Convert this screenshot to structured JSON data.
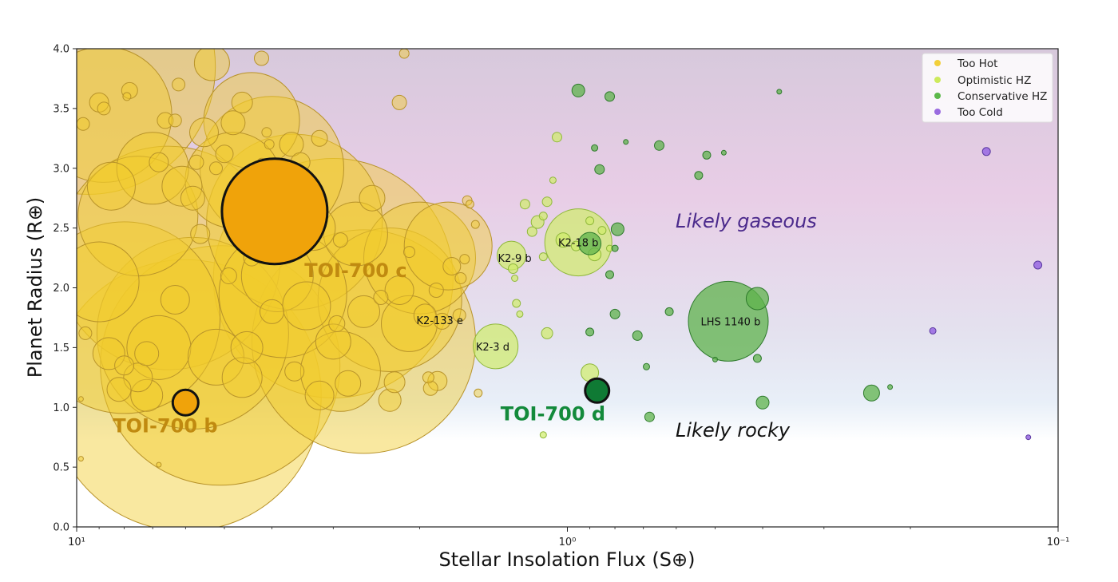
{
  "chart_data": {
    "type": "scatter",
    "xlabel": "Stellar Insolation Flux (S⊕)",
    "ylabel": "Planet Radius (R⊕)",
    "x_scale": "log",
    "x_reversed": true,
    "xlim": [
      10,
      0.1
    ],
    "ylim": [
      0,
      4
    ],
    "x_ticks": [
      {
        "value": 10,
        "label": "10¹"
      },
      {
        "value": 1,
        "label": "10⁰"
      },
      {
        "value": 0.1,
        "label": "10⁻¹"
      }
    ],
    "y_ticks": [
      0.0,
      0.5,
      1.0,
      1.5,
      2.0,
      2.5,
      3.0,
      3.5,
      4.0
    ],
    "grid": false,
    "legend": {
      "position": "top-right",
      "entries": [
        {
          "name": "Too Hot",
          "color": "#f2cf3a"
        },
        {
          "name": "Optimistic HZ",
          "color": "#cdea5c"
        },
        {
          "name": "Conservative HZ",
          "color": "#5cb84a"
        },
        {
          "name": "Too Cold",
          "color": "#9a6be0"
        }
      ]
    },
    "regions": [
      {
        "label": "Likely gaseous",
        "color": "#4b2a8c"
      },
      {
        "label": "Likely rocky",
        "color": "#111111"
      }
    ],
    "colors": {
      "too_hot_fill": "#f2cb2c",
      "too_hot_edge": "#b8932a",
      "optimistic_fill": "#d0ec6a",
      "optimistic_edge": "#8fb83a",
      "conservative_fill": "#5fb34c",
      "conservative_edge": "#2e7a2c",
      "too_cold_fill": "#9b6ee2",
      "too_cold_edge": "#5b3aa0",
      "toi_hot_fill": "#f0a30a",
      "toi_d_fill": "#0f7a34",
      "toi_c_text": "#c08a10",
      "toi_d_text": "#138a3b"
    },
    "series": [
      {
        "name": "Too Hot",
        "points": [
          [
            9.5,
            3.85,
            160
          ],
          [
            8.8,
            3.45,
            85
          ],
          [
            5.3,
            3.88,
            22
          ],
          [
            4.4,
            3.4,
            60
          ],
          [
            3.6,
            2.55,
            110
          ],
          [
            3.0,
            2.08,
            150
          ],
          [
            2.6,
            1.55,
            140
          ],
          [
            2.3,
            1.9,
            90
          ],
          [
            2.0,
            2.25,
            70
          ],
          [
            1.75,
            2.35,
            55
          ],
          [
            5.8,
            1.62,
            120
          ],
          [
            6.0,
            1.1,
            170
          ],
          [
            5.1,
            1.35,
            150
          ],
          [
            4.0,
            3.0,
            90
          ],
          [
            7.5,
            2.6,
            75
          ],
          [
            6.5,
            2.25,
            140
          ],
          [
            8.0,
            1.75,
            120
          ],
          [
            4.8,
            2.9,
            60
          ],
          [
            3.8,
            1.95,
            80
          ],
          [
            2.9,
            1.3,
            50
          ],
          [
            2.7,
            2.45,
            40
          ],
          [
            2.1,
            1.7,
            35
          ],
          [
            7.0,
            3.0,
            45
          ],
          [
            9.0,
            2.05,
            50
          ],
          [
            6.8,
            1.5,
            40
          ],
          [
            5.5,
            3.3,
            18
          ],
          [
            4.6,
            3.55,
            13
          ],
          [
            4.2,
            3.92,
            9
          ],
          [
            3.5,
            3.05,
            12
          ],
          [
            3.2,
            3.25,
            10
          ],
          [
            5.0,
            3.12,
            11
          ],
          [
            6.2,
            3.7,
            8
          ],
          [
            7.8,
            3.65,
            10
          ],
          [
            8.5,
            2.85,
            30
          ],
          [
            6.1,
            2.85,
            25
          ],
          [
            4.3,
            2.7,
            24
          ],
          [
            3.9,
            2.1,
            45
          ],
          [
            3.3,
            2.5,
            28
          ],
          [
            2.5,
            2.75,
            16
          ],
          [
            2.2,
            1.98,
            18
          ],
          [
            2.2,
            3.55,
            9
          ],
          [
            2.15,
            3.96,
            6
          ],
          [
            1.95,
            1.77,
            14
          ],
          [
            1.8,
            1.72,
            10
          ],
          [
            1.72,
            2.18,
            11
          ],
          [
            1.6,
            2.73,
            6
          ],
          [
            1.58,
            2.7,
            5
          ],
          [
            1.54,
            2.53,
            5
          ],
          [
            1.52,
            1.12,
            5
          ],
          [
            1.62,
            2.24,
            6
          ],
          [
            1.66,
            1.77,
            8
          ],
          [
            1.84,
            1.22,
            12
          ],
          [
            2.3,
            1.06,
            14
          ],
          [
            1.92,
            1.25,
            7
          ],
          [
            1.9,
            1.16,
            9
          ],
          [
            2.25,
            1.21,
            13
          ],
          [
            1.85,
            1.98,
            9
          ],
          [
            1.65,
            2.08,
            7
          ],
          [
            2.6,
            1.8,
            20
          ],
          [
            3.0,
            1.55,
            22
          ],
          [
            3.4,
            1.85,
            30
          ],
          [
            4.6,
            1.25,
            25
          ],
          [
            5.2,
            1.42,
            35
          ],
          [
            8.0,
            1.35,
            12
          ],
          [
            8.2,
            1.15,
            15
          ],
          [
            7.2,
            1.1,
            20
          ],
          [
            9.6,
            1.62,
            8
          ],
          [
            9.8,
            1.07,
            3
          ],
          [
            9.8,
            0.57,
            3
          ],
          [
            6.8,
            0.52,
            3
          ],
          [
            9.0,
            3.55,
            12
          ],
          [
            8.8,
            3.5,
            8
          ],
          [
            7.9,
            3.6,
            5
          ],
          [
            9.7,
            3.37,
            8
          ],
          [
            4.8,
            3.38,
            15
          ],
          [
            4.1,
            3.3,
            6
          ],
          [
            4.05,
            3.2,
            6
          ],
          [
            4.2,
            3.05,
            5
          ],
          [
            4.5,
            2.85,
            5
          ],
          [
            3.65,
            3.2,
            15
          ],
          [
            3.15,
            2.65,
            6
          ],
          [
            3.55,
            2.9,
            8
          ],
          [
            2.9,
            2.4,
            9
          ],
          [
            2.4,
            1.92,
            9
          ],
          [
            2.1,
            2.3,
            7
          ],
          [
            6.8,
            3.05,
            12
          ],
          [
            5.8,
            2.75,
            15
          ],
          [
            5.6,
            2.45,
            12
          ],
          [
            4.9,
            2.1,
            10
          ],
          [
            6.3,
            1.9,
            18
          ],
          [
            7.5,
            1.25,
            18
          ],
          [
            7.2,
            1.45,
            15
          ],
          [
            8.6,
            1.45,
            20
          ],
          [
            4.5,
            1.5,
            20
          ],
          [
            4.0,
            1.8,
            15
          ],
          [
            3.6,
            1.3,
            12
          ],
          [
            3.2,
            1.1,
            18
          ],
          [
            2.8,
            1.2,
            16
          ],
          [
            2.95,
            1.7,
            10
          ],
          [
            5.7,
            3.05,
            9
          ],
          [
            5.2,
            3.0,
            8
          ],
          [
            6.6,
            3.4,
            10
          ],
          [
            6.3,
            3.4,
            8
          ],
          [
            4.5,
            2.42,
            12
          ],
          [
            4.4,
            2.25,
            10
          ]
        ]
      },
      {
        "name": "Optimistic HZ",
        "points": [
          [
            1.4,
            1.51,
            28
          ],
          [
            1.3,
            2.27,
            18
          ],
          [
            0.95,
            2.38,
            42
          ],
          [
            1.29,
            2.16,
            6
          ],
          [
            1.27,
            1.87,
            5
          ],
          [
            1.18,
            2.47,
            6
          ],
          [
            1.15,
            2.55,
            8
          ],
          [
            1.12,
            2.6,
            5
          ],
          [
            1.1,
            2.72,
            6
          ],
          [
            1.07,
            2.9,
            4
          ],
          [
            1.05,
            3.26,
            6
          ],
          [
            1.22,
            2.7,
            6
          ],
          [
            1.28,
            2.08,
            4
          ],
          [
            1.25,
            1.78,
            4
          ],
          [
            1.12,
            2.26,
            5
          ],
          [
            1.1,
            1.62,
            7
          ],
          [
            0.9,
            1.29,
            11
          ],
          [
            1.12,
            0.77,
            4
          ],
          [
            0.96,
            2.35,
            6
          ],
          [
            0.9,
            2.56,
            5
          ],
          [
            0.85,
            2.48,
            5
          ],
          [
            0.82,
            2.33,
            4
          ],
          [
            0.88,
            2.28,
            8
          ],
          [
            1.02,
            2.4,
            9
          ]
        ]
      },
      {
        "name": "Conservative HZ",
        "points": [
          [
            0.47,
            1.72,
            50
          ],
          [
            0.95,
            3.65,
            8
          ],
          [
            0.82,
            3.6,
            6
          ],
          [
            0.88,
            3.17,
            4
          ],
          [
            0.86,
            2.99,
            6
          ],
          [
            0.76,
            3.22,
            3
          ],
          [
            0.65,
            3.19,
            6
          ],
          [
            0.52,
            3.11,
            5
          ],
          [
            0.48,
            3.13,
            3
          ],
          [
            0.54,
            2.94,
            5
          ],
          [
            0.37,
            3.64,
            3
          ],
          [
            0.79,
            2.49,
            8
          ],
          [
            0.9,
            2.37,
            14
          ],
          [
            0.82,
            2.11,
            5
          ],
          [
            0.8,
            2.33,
            4
          ],
          [
            0.62,
            1.8,
            5
          ],
          [
            0.41,
            1.91,
            14
          ],
          [
            0.8,
            1.78,
            6
          ],
          [
            0.72,
            1.6,
            6
          ],
          [
            0.69,
            1.34,
            4
          ],
          [
            0.41,
            1.41,
            5
          ],
          [
            0.9,
            1.63,
            5
          ],
          [
            0.5,
            1.4,
            3
          ],
          [
            0.4,
            1.04,
            8
          ],
          [
            0.24,
            1.12,
            10
          ],
          [
            0.22,
            1.17,
            3
          ],
          [
            0.68,
            0.92,
            6
          ]
        ]
      },
      {
        "name": "Too Cold",
        "points": [
          [
            0.14,
            3.14,
            5
          ],
          [
            0.11,
            2.19,
            5
          ],
          [
            0.18,
            1.64,
            4
          ],
          [
            0.115,
            0.75,
            3
          ]
        ]
      }
    ],
    "highlighted": [
      {
        "name": "TOI-700 b",
        "x": 6.0,
        "y": 1.04,
        "r": 16,
        "color": "#f0a30a",
        "label_x": 6.6,
        "label_y": 0.79
      },
      {
        "name": "TOI-700 c",
        "x": 3.95,
        "y": 2.64,
        "r": 66,
        "color": "#f0a30a",
        "label_x": 2.7,
        "label_y": 2.09
      },
      {
        "name": "TOI-700 d",
        "x": 0.87,
        "y": 1.14,
        "r": 15,
        "color": "#0f7a34",
        "label_x": 1.07,
        "label_y": 0.89
      }
    ],
    "annotations": [
      {
        "text": "K2-18 b",
        "x": 0.95,
        "y": 2.38
      },
      {
        "text": "K2-9 b",
        "x": 1.28,
        "y": 2.25
      },
      {
        "text": "K2-133 e",
        "x": 1.82,
        "y": 1.73
      },
      {
        "text": "K2-3 d",
        "x": 1.42,
        "y": 1.51
      },
      {
        "text": "LHS 1140 b",
        "x": 0.465,
        "y": 1.72
      }
    ]
  }
}
